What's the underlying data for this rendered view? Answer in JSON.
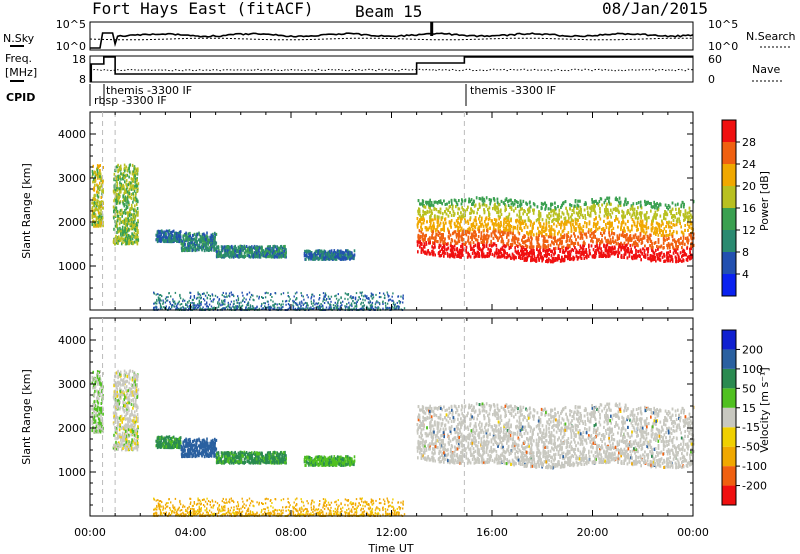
{
  "header": {
    "radar": "Fort Hays East (fitACF)",
    "beam": "Beam 15",
    "date": "08/Jan/2015"
  },
  "strips": {
    "nsky": {
      "label": "N.Sky",
      "tick_top": "10^5",
      "tick_bottom": "10^0"
    },
    "nsearch": {
      "label": "N.Search",
      "tick_top": "10^5",
      "tick_bottom": "10^0"
    },
    "freq": {
      "label_1": "Freq.",
      "label_2": "[MHz]",
      "tick_top": "18",
      "tick_bottom": "8"
    },
    "nave": {
      "label": "Nave",
      "tick_top": "60",
      "tick_bottom": "0"
    },
    "cpid": {
      "label": "CPID",
      "annotations": [
        "themis -3300 IF",
        "rbsp -3300 IF",
        "themis -3300 IF"
      ]
    }
  },
  "axes": {
    "xlabel": "Time UT",
    "xticks": [
      "00:00",
      "04:00",
      "08:00",
      "12:00",
      "16:00",
      "20:00",
      "00:00"
    ],
    "ylabel": "Slant Range [km]",
    "yticks": [
      "1000",
      "2000",
      "3000",
      "4000"
    ]
  },
  "colorbars": {
    "power": {
      "label": "Power [dB]",
      "ticks": [
        "4",
        "8",
        "12",
        "16",
        "20",
        "24",
        "28"
      ],
      "colors": [
        "#0a22f0",
        "#2250b0",
        "#2a8a70",
        "#3aa050",
        "#b8c020",
        "#f0a800",
        "#f06010",
        "#f01010"
      ]
    },
    "velocity": {
      "label": "Velocity [m s⁻¹]",
      "ticks": [
        "-200",
        "-100",
        "-50",
        "-15",
        "15",
        "50",
        "100",
        "200"
      ],
      "colors": [
        "#f01010",
        "#f06010",
        "#f0a800",
        "#f0d000",
        "#c8c8c0",
        "#50c020",
        "#2a8a50",
        "#2a60a0",
        "#1020d0"
      ]
    }
  },
  "chart_data": {
    "type": "heatmap",
    "x_range_hours": [
      0,
      24
    ],
    "y_range_km": [
      0,
      4500
    ],
    "scatter_regions": [
      {
        "t0": 0.05,
        "t1": 0.5,
        "r0": 1900,
        "r1": 3300,
        "power": 18,
        "velocity": 15
      },
      {
        "t0": 0.9,
        "t1": 1.9,
        "r0": 1500,
        "r1": 3300,
        "power": 16,
        "velocity": 0
      },
      {
        "t0": 2.6,
        "t1": 3.6,
        "r0": 1550,
        "r1": 1800,
        "power": 8,
        "velocity": 60
      },
      {
        "t0": 3.6,
        "t1": 5.0,
        "r0": 1350,
        "r1": 1750,
        "power": 10,
        "velocity": 150
      },
      {
        "t0": 5.0,
        "t1": 7.8,
        "r0": 1200,
        "r1": 1450,
        "power": 10,
        "velocity": 60
      },
      {
        "t0": 8.5,
        "t1": 10.5,
        "r0": 1150,
        "r1": 1350,
        "power": 8,
        "velocity": 40
      },
      {
        "t0": 13.0,
        "t1": 24.0,
        "r0": 1100,
        "r1": 2500,
        "power": 20,
        "velocity": 0
      }
    ],
    "ground_scatter_band": {
      "t0": 2.5,
      "t1": 12.5,
      "r0": 0,
      "r1": 400,
      "velocity": -50
    },
    "vertical_markers_hours": [
      0.5,
      1.0,
      14.9
    ]
  }
}
